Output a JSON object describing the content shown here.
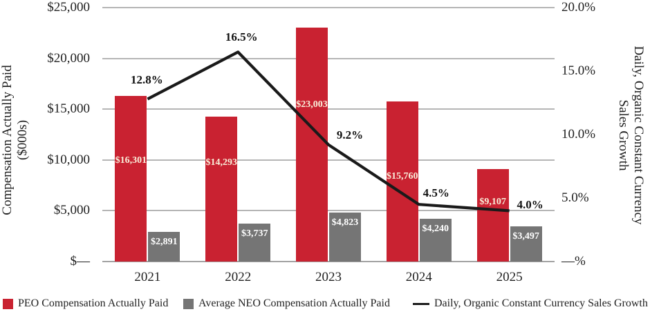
{
  "chart_data": {
    "type": "bar+line combo",
    "categories": [
      "2021",
      "2022",
      "2023",
      "2024",
      "2025"
    ],
    "series": [
      {
        "name": "PEO Compensation Actually Paid",
        "type": "bar",
        "color": "#c92231",
        "label_color": "#f9efda",
        "values": [
          16301,
          14293,
          23003,
          15760,
          9107
        ],
        "labels": [
          "$16,301",
          "$14,293",
          "$23,003",
          "$15,760",
          "$9,107"
        ]
      },
      {
        "name": "Average NEO Compensation Actually Paid",
        "type": "bar",
        "color": "#757575",
        "label_color": "#ffffff",
        "values": [
          2891,
          3737,
          4823,
          4240,
          3497
        ],
        "labels": [
          "$2,891",
          "$3,737",
          "$4,823",
          "$4,240",
          "$3,497"
        ]
      },
      {
        "name": "Daily, Organic Constant Currency Sales Growth",
        "type": "line",
        "color": "#1a1a1a",
        "values": [
          12.8,
          16.5,
          9.2,
          4.5,
          4.0
        ],
        "labels": [
          "12.8%",
          "16.5%",
          "9.2%",
          "4.5%",
          "4.0%"
        ]
      }
    ],
    "left_axis": {
      "title_line1": "Compensation Actually Paid",
      "title_line2": "($000s)",
      "ticks": [
        "$25,000",
        "$20,000",
        "$15,000",
        "$10,000",
        "$5,000",
        "$—"
      ],
      "tick_values": [
        25000,
        20000,
        15000,
        10000,
        5000,
        0
      ],
      "max": 25000
    },
    "right_axis": {
      "title_line1": "Daily, Organic Constant Currency",
      "title_line2": "Sales Growth",
      "ticks": [
        "20.0%",
        "15.0%",
        "10.0%",
        "5.0%",
        "—%"
      ],
      "tick_values": [
        20,
        15,
        10,
        5,
        0
      ],
      "max": 20
    },
    "grid": true,
    "legend_position": "bottom",
    "colors": {
      "gridline": "#b5b5b5",
      "axisline": "#a3a3a3",
      "text": "#1f1f1f"
    }
  }
}
